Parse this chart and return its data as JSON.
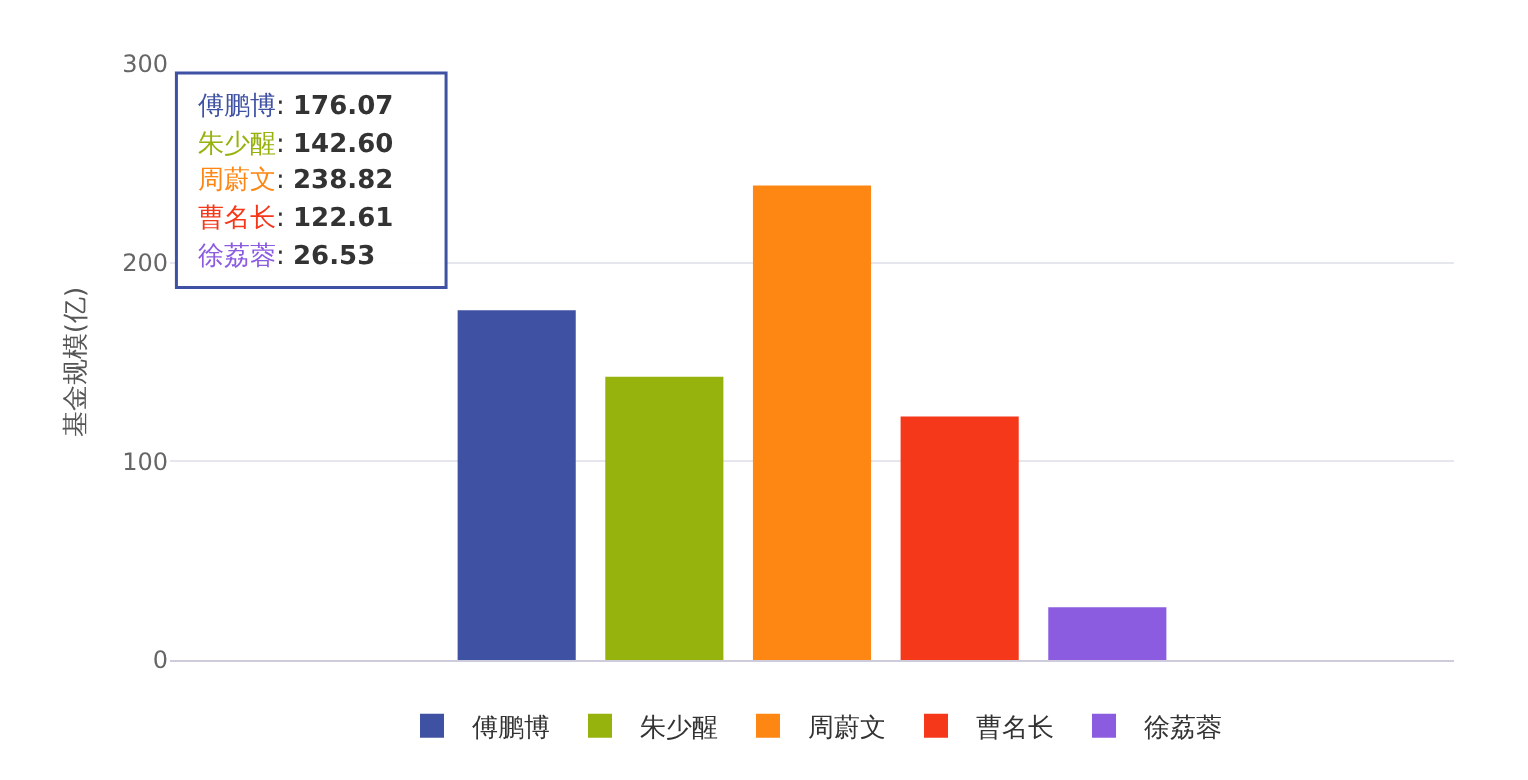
{
  "chart_data": {
    "type": "bar",
    "ylabel": "基金规模(亿)",
    "categories": [
      null
    ],
    "series": [
      {
        "name": "傅鹏博",
        "color": "#3f51a3",
        "values": [
          176.07
        ]
      },
      {
        "name": "朱少醒",
        "color": "#96b30d",
        "values": [
          142.6
        ]
      },
      {
        "name": "周蔚文",
        "color": "#fd8712",
        "values": [
          238.82
        ]
      },
      {
        "name": "曹名长",
        "color": "#f5371a",
        "values": [
          122.61
        ]
      },
      {
        "name": "徐荔蓉",
        "color": "#8c5ce0",
        "values": [
          26.53
        ]
      }
    ],
    "annotations": [
      "傅鹏博: 176.07",
      "朱少醒: 142.60",
      "周蔚文: 238.82",
      "曹名长: 122.61",
      "徐荔蓉: 26.53"
    ],
    "ylim": [
      0,
      300
    ],
    "yticks": [
      0,
      100,
      200,
      300
    ],
    "grid": "y",
    "legend": "bottom"
  }
}
